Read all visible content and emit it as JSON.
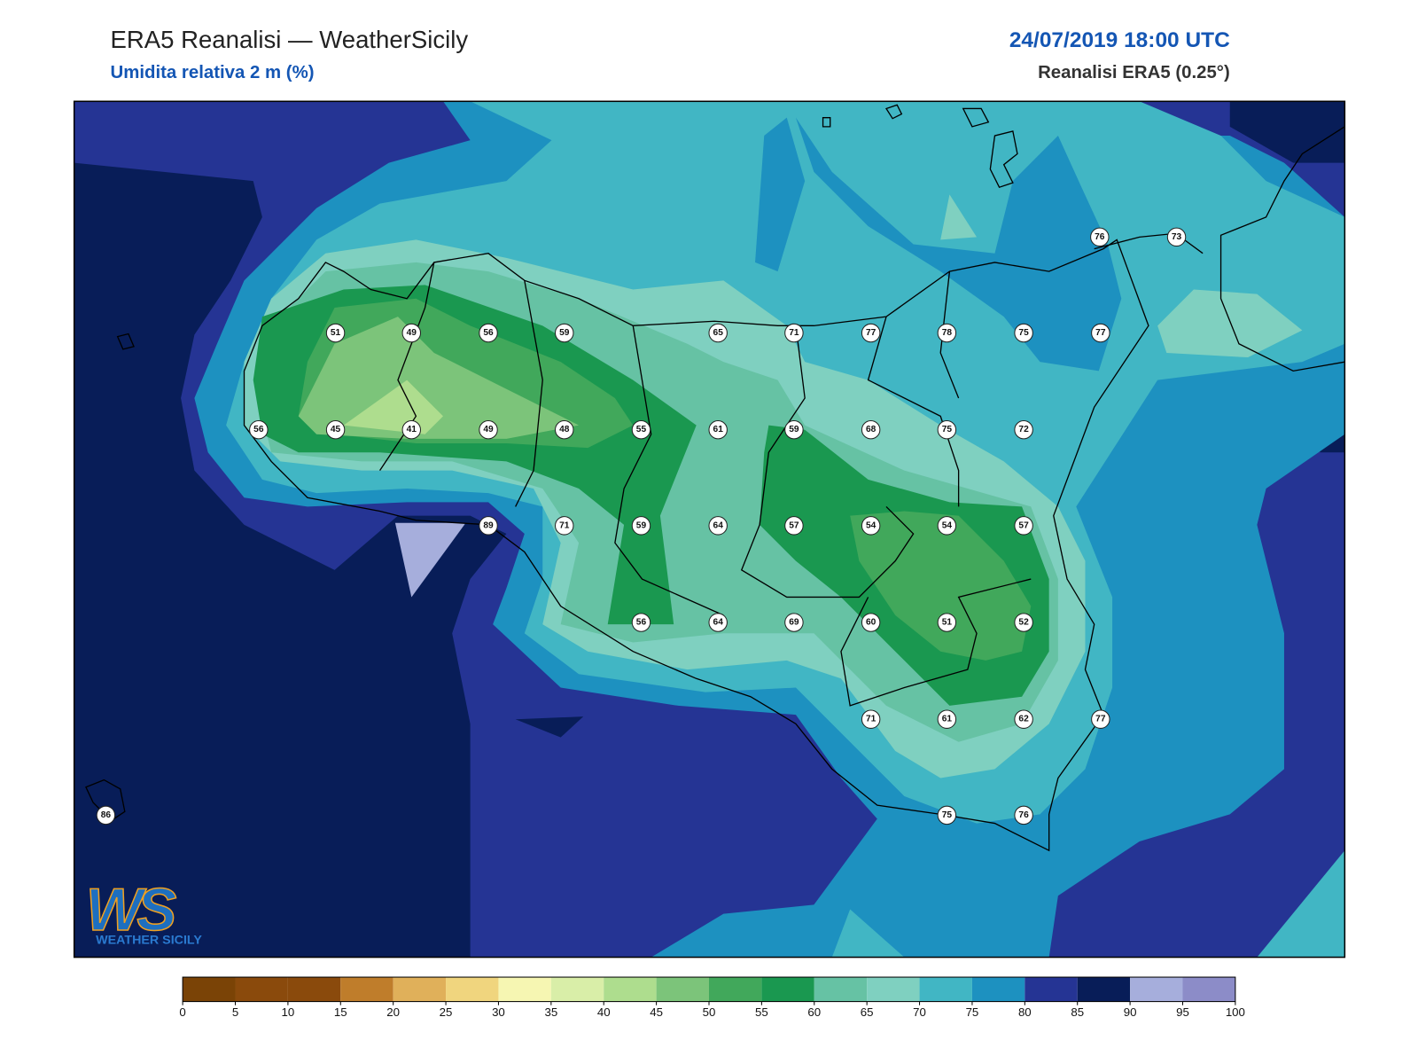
{
  "header": {
    "title": "ERA5 Reanalisi — WeatherSicily",
    "subtitle": "Umidita relativa 2 m (%)",
    "datetime": "24/07/2019 18:00 UTC",
    "source": "Reanalisi ERA5 (0.25°)"
  },
  "stations": {
    "values": [
      76,
      73,
      51,
      49,
      56,
      59,
      65,
      71,
      77,
      78,
      75,
      77,
      56,
      45,
      41,
      49,
      48,
      55,
      61,
      59,
      68,
      75,
      72,
      89,
      71,
      59,
      64,
      57,
      54,
      54,
      57,
      56,
      64,
      69,
      60,
      51,
      52,
      71,
      61,
      62,
      77,
      86,
      75,
      76
    ]
  },
  "colorbar": {
    "levels": [
      0,
      5,
      10,
      15,
      20,
      25,
      30,
      35,
      40,
      45,
      50,
      55,
      60,
      65,
      70,
      75,
      80,
      85,
      90,
      95,
      100
    ],
    "colors": [
      "#7a4306",
      "#8a4a0c",
      "#8a4a0c",
      "#bf7d2b",
      "#e0b05a",
      "#f0d57e",
      "#f6f6b2",
      "#d9eea8",
      "#aedd8e",
      "#7cc47a",
      "#41a85b",
      "#1a9850",
      "#66c2a4",
      "#7fd0c0",
      "#41b6c4",
      "#1d91c0",
      "#253494",
      "#081d58",
      "#a6aedc",
      "#8c8cc8"
    ]
  },
  "logo": {
    "mark": "WS",
    "name": "WEATHER SICILY"
  }
}
